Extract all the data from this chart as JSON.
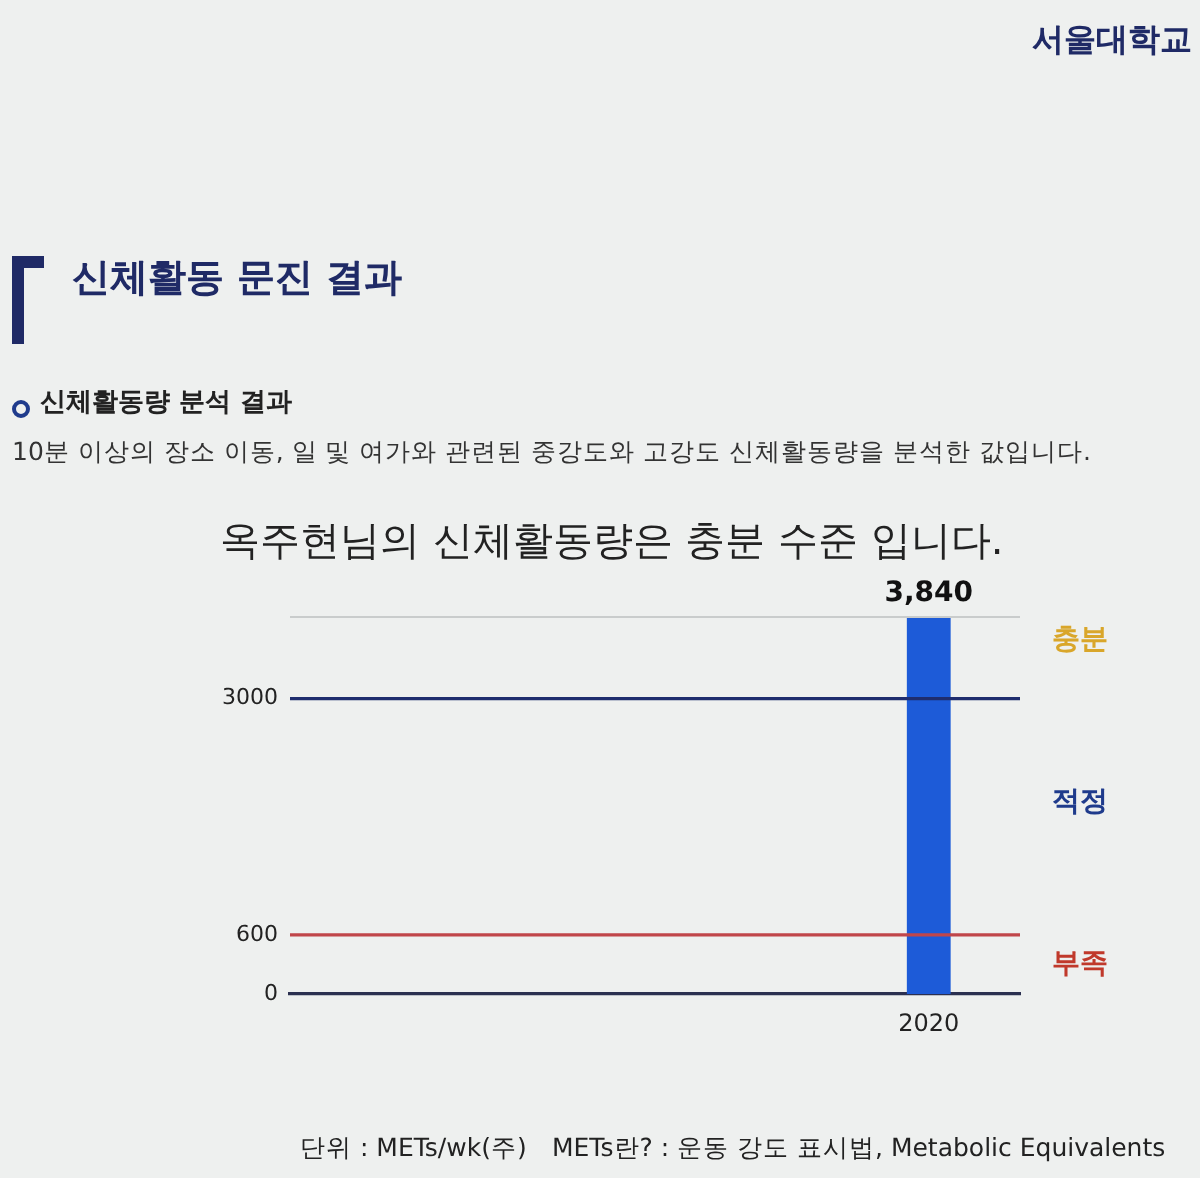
{
  "chart_data": {
    "type": "bar",
    "title": "옥주현님의 신체활동량은 충분 수준 입니다.",
    "categories": [
      null,
      null,
      null,
      "2020"
    ],
    "values": [
      null,
      null,
      null,
      3840
    ],
    "color": "#1d5bd8",
    "value_labels": [
      null,
      null,
      null,
      "3,840"
    ],
    "ylim": [
      0,
      3840
    ],
    "yticks": [
      0,
      600,
      3000
    ],
    "ref_lines": [
      {
        "axis": "y",
        "value": 3000,
        "color": "#1f2d6e"
      },
      {
        "axis": "y",
        "value": 600,
        "color": "#c0464a"
      }
    ],
    "annotations": [
      "서울대학교",
      "신체활동 문진 결과",
      "신체활동량 분석 결과",
      "10분 이상의 장소 이동, 일 및 여가와 관련된 중강도와 고강도 신체활동량을 분석한 값입니다.",
      "충분",
      "적정",
      "부족",
      "단위 : METs/wk(주)",
      "METs란? : 운동 강도 표시법, Metabolic Equivalents"
    ]
  }
}
